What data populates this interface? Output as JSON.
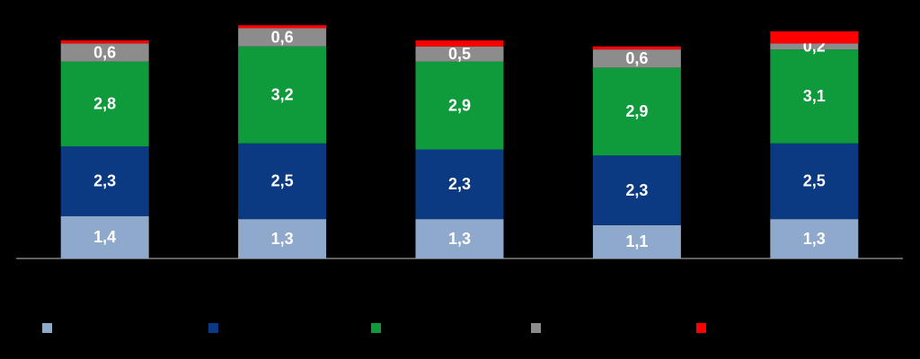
{
  "chart_data": {
    "type": "stacked-bar",
    "categories": [
      null,
      null,
      null,
      null,
      null
    ],
    "series": [
      {
        "color": "#8fa9cd",
        "values": [
          1.4,
          1.3,
          1.3,
          1.1,
          1.3
        ],
        "value_labels": [
          "1,4",
          "1,3",
          "1,3",
          "1,1",
          "1,3"
        ]
      },
      {
        "color": "#0b3a82",
        "values": [
          2.3,
          2.5,
          2.3,
          2.3,
          2.5
        ],
        "value_labels": [
          "2,3",
          "2,5",
          "2,3",
          "2,3",
          "2,5"
        ]
      },
      {
        "color": "#0f9a3b",
        "values": [
          2.8,
          3.2,
          2.9,
          2.9,
          3.1
        ],
        "value_labels": [
          "2,8",
          "3,2",
          "2,9",
          "2,9",
          "3,1"
        ]
      },
      {
        "color": "#8c8c8c",
        "values": [
          0.6,
          0.6,
          0.5,
          0.6,
          0.2
        ],
        "value_labels": [
          "0,6",
          "0,6",
          "0,5",
          "0,6",
          "0,2"
        ]
      },
      {
        "color": "#ff0000",
        "values": [
          0.1,
          0.1,
          0.2,
          0.1,
          0.4
        ]
      }
    ],
    "ylim": [
      0,
      8
    ]
  }
}
